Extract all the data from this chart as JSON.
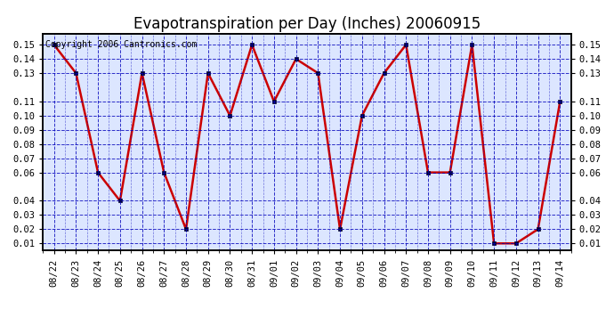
{
  "title": "Evapotranspiration per Day (Inches) 20060915",
  "copyright_text": "Copyright 2006 Cantronics.com",
  "dates": [
    "08/22",
    "08/23",
    "08/24",
    "08/25",
    "08/26",
    "08/27",
    "08/28",
    "08/29",
    "08/30",
    "08/31",
    "09/01",
    "09/02",
    "09/03",
    "09/04",
    "09/05",
    "09/06",
    "09/07",
    "09/08",
    "09/09",
    "09/10",
    "09/11",
    "09/12",
    "09/13",
    "09/14"
  ],
  "values": [
    0.15,
    0.13,
    0.06,
    0.04,
    0.13,
    0.06,
    0.02,
    0.13,
    0.1,
    0.15,
    0.11,
    0.14,
    0.13,
    0.02,
    0.1,
    0.13,
    0.15,
    0.06,
    0.06,
    0.15,
    0.01,
    0.01,
    0.02,
    0.11
  ],
  "ylim": [
    0.005,
    0.158
  ],
  "yticks": [
    0.01,
    0.02,
    0.03,
    0.04,
    0.06,
    0.07,
    0.08,
    0.09,
    0.1,
    0.11,
    0.13,
    0.14,
    0.15
  ],
  "ytick_labels": [
    "0.01",
    "0.02",
    "0.03",
    "0.04",
    "0.06",
    "0.07",
    "0.08",
    "0.09",
    "0.10",
    "0.11",
    "0.13",
    "0.14",
    "0.15"
  ],
  "line_color": "#cc0000",
  "marker_color": "#000033",
  "background_color": "#dce6ff",
  "grid_color": "#0000bb",
  "title_fontsize": 12,
  "axis_fontsize": 7.5,
  "copyright_fontsize": 7
}
